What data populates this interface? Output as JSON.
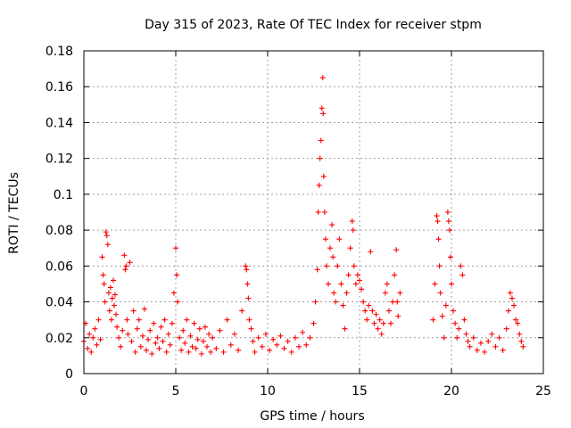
{
  "chart_data": {
    "type": "scatter",
    "title": "Day 315 of 2023, Rate Of TEC Index for receiver stpm",
    "xlabel": "GPS time / hours",
    "ylabel": "ROTI / TECUs",
    "xlim": [
      0,
      25
    ],
    "ylim": [
      0,
      0.18
    ],
    "xticks": [
      0,
      5,
      10,
      15,
      20,
      25
    ],
    "xtick_labels": [
      "0",
      "5",
      "10",
      "15",
      "20",
      "25"
    ],
    "yticks": [
      0,
      0.02,
      0.04,
      0.06,
      0.08,
      0.1,
      0.12,
      0.14,
      0.16,
      0.18
    ],
    "ytick_labels": [
      "0",
      "0.02",
      "0.04",
      "0.06",
      "0.08",
      "0.1",
      "0.12",
      "0.14",
      "0.16",
      "0.18"
    ],
    "grid": true,
    "marker": "plus",
    "color": "#ff0000",
    "series": [
      {
        "name": "ROTI",
        "points": [
          [
            0.0,
            0.018
          ],
          [
            0.1,
            0.028
          ],
          [
            0.2,
            0.014
          ],
          [
            0.3,
            0.022
          ],
          [
            0.4,
            0.012
          ],
          [
            0.5,
            0.02
          ],
          [
            0.6,
            0.025
          ],
          [
            0.7,
            0.016
          ],
          [
            0.8,
            0.03
          ],
          [
            0.9,
            0.019
          ],
          [
            1.0,
            0.065
          ],
          [
            1.05,
            0.055
          ],
          [
            1.1,
            0.05
          ],
          [
            1.15,
            0.04
          ],
          [
            1.2,
            0.079
          ],
          [
            1.25,
            0.077
          ],
          [
            1.3,
            0.072
          ],
          [
            1.35,
            0.045
          ],
          [
            1.4,
            0.035
          ],
          [
            1.45,
            0.048
          ],
          [
            1.5,
            0.03
          ],
          [
            1.55,
            0.042
          ],
          [
            1.6,
            0.052
          ],
          [
            1.65,
            0.038
          ],
          [
            1.7,
            0.044
          ],
          [
            1.75,
            0.033
          ],
          [
            1.8,
            0.026
          ],
          [
            1.9,
            0.02
          ],
          [
            2.0,
            0.015
          ],
          [
            2.1,
            0.024
          ],
          [
            2.2,
            0.066
          ],
          [
            2.25,
            0.058
          ],
          [
            2.3,
            0.06
          ],
          [
            2.35,
            0.03
          ],
          [
            2.4,
            0.022
          ],
          [
            2.5,
            0.062
          ],
          [
            2.6,
            0.018
          ],
          [
            2.7,
            0.035
          ],
          [
            2.8,
            0.012
          ],
          [
            2.9,
            0.025
          ],
          [
            3.0,
            0.03
          ],
          [
            3.1,
            0.015
          ],
          [
            3.2,
            0.021
          ],
          [
            3.3,
            0.036
          ],
          [
            3.4,
            0.013
          ],
          [
            3.5,
            0.019
          ],
          [
            3.6,
            0.024
          ],
          [
            3.7,
            0.011
          ],
          [
            3.8,
            0.028
          ],
          [
            3.9,
            0.017
          ],
          [
            4.0,
            0.02
          ],
          [
            4.1,
            0.014
          ],
          [
            4.2,
            0.026
          ],
          [
            4.3,
            0.018
          ],
          [
            4.4,
            0.03
          ],
          [
            4.5,
            0.012
          ],
          [
            4.6,
            0.022
          ],
          [
            4.7,
            0.016
          ],
          [
            4.8,
            0.028
          ],
          [
            4.9,
            0.045
          ],
          [
            5.0,
            0.07
          ],
          [
            5.05,
            0.055
          ],
          [
            5.1,
            0.04
          ],
          [
            5.2,
            0.02
          ],
          [
            5.3,
            0.013
          ],
          [
            5.4,
            0.024
          ],
          [
            5.5,
            0.017
          ],
          [
            5.6,
            0.03
          ],
          [
            5.7,
            0.012
          ],
          [
            5.8,
            0.021
          ],
          [
            5.9,
            0.015
          ],
          [
            6.0,
            0.028
          ],
          [
            6.1,
            0.014
          ],
          [
            6.2,
            0.019
          ],
          [
            6.3,
            0.025
          ],
          [
            6.4,
            0.011
          ],
          [
            6.5,
            0.018
          ],
          [
            6.6,
            0.026
          ],
          [
            6.7,
            0.015
          ],
          [
            6.8,
            0.022
          ],
          [
            6.9,
            0.012
          ],
          [
            7.0,
            0.02
          ],
          [
            7.2,
            0.014
          ],
          [
            7.4,
            0.024
          ],
          [
            7.6,
            0.012
          ],
          [
            7.8,
            0.03
          ],
          [
            8.0,
            0.016
          ],
          [
            8.2,
            0.022
          ],
          [
            8.4,
            0.013
          ],
          [
            8.6,
            0.035
          ],
          [
            8.8,
            0.06
          ],
          [
            8.85,
            0.058
          ],
          [
            8.9,
            0.05
          ],
          [
            8.95,
            0.042
          ],
          [
            9.0,
            0.03
          ],
          [
            9.1,
            0.025
          ],
          [
            9.2,
            0.018
          ],
          [
            9.3,
            0.012
          ],
          [
            9.5,
            0.02
          ],
          [
            9.7,
            0.015
          ],
          [
            9.9,
            0.022
          ],
          [
            10.1,
            0.013
          ],
          [
            10.3,
            0.019
          ],
          [
            10.5,
            0.016
          ],
          [
            10.7,
            0.021
          ],
          [
            10.9,
            0.014
          ],
          [
            11.1,
            0.018
          ],
          [
            11.3,
            0.012
          ],
          [
            11.5,
            0.02
          ],
          [
            11.7,
            0.015
          ],
          [
            11.9,
            0.023
          ],
          [
            12.1,
            0.016
          ],
          [
            12.3,
            0.02
          ],
          [
            12.5,
            0.028
          ],
          [
            12.6,
            0.04
          ],
          [
            12.7,
            0.058
          ],
          [
            12.75,
            0.09
          ],
          [
            12.8,
            0.105
          ],
          [
            12.85,
            0.12
          ],
          [
            12.9,
            0.13
          ],
          [
            12.95,
            0.148
          ],
          [
            13.0,
            0.165
          ],
          [
            13.02,
            0.145
          ],
          [
            13.05,
            0.11
          ],
          [
            13.1,
            0.09
          ],
          [
            13.15,
            0.075
          ],
          [
            13.2,
            0.06
          ],
          [
            13.3,
            0.05
          ],
          [
            13.4,
            0.07
          ],
          [
            13.5,
            0.083
          ],
          [
            13.55,
            0.065
          ],
          [
            13.6,
            0.045
          ],
          [
            13.7,
            0.04
          ],
          [
            13.8,
            0.06
          ],
          [
            13.9,
            0.075
          ],
          [
            14.0,
            0.05
          ],
          [
            14.1,
            0.038
          ],
          [
            14.2,
            0.025
          ],
          [
            14.3,
            0.045
          ],
          [
            14.4,
            0.055
          ],
          [
            14.5,
            0.07
          ],
          [
            14.6,
            0.085
          ],
          [
            14.65,
            0.08
          ],
          [
            14.7,
            0.06
          ],
          [
            14.8,
            0.05
          ],
          [
            14.9,
            0.055
          ],
          [
            15.0,
            0.052
          ],
          [
            15.1,
            0.047
          ],
          [
            15.2,
            0.04
          ],
          [
            15.3,
            0.035
          ],
          [
            15.4,
            0.03
          ],
          [
            15.5,
            0.038
          ],
          [
            15.6,
            0.068
          ],
          [
            15.7,
            0.035
          ],
          [
            15.8,
            0.028
          ],
          [
            15.9,
            0.033
          ],
          [
            16.0,
            0.025
          ],
          [
            16.1,
            0.03
          ],
          [
            16.2,
            0.022
          ],
          [
            16.3,
            0.028
          ],
          [
            16.4,
            0.045
          ],
          [
            16.5,
            0.05
          ],
          [
            16.6,
            0.035
          ],
          [
            16.7,
            0.028
          ],
          [
            16.8,
            0.04
          ],
          [
            16.9,
            0.055
          ],
          [
            17.0,
            0.069
          ],
          [
            17.05,
            0.04
          ],
          [
            17.1,
            0.032
          ],
          [
            17.2,
            0.045
          ],
          [
            19.0,
            0.03
          ],
          [
            19.1,
            0.05
          ],
          [
            19.2,
            0.088
          ],
          [
            19.25,
            0.085
          ],
          [
            19.3,
            0.075
          ],
          [
            19.35,
            0.06
          ],
          [
            19.4,
            0.045
          ],
          [
            19.5,
            0.032
          ],
          [
            19.6,
            0.02
          ],
          [
            19.7,
            0.038
          ],
          [
            19.8,
            0.09
          ],
          [
            19.85,
            0.085
          ],
          [
            19.9,
            0.08
          ],
          [
            19.95,
            0.065
          ],
          [
            20.0,
            0.05
          ],
          [
            20.1,
            0.035
          ],
          [
            20.2,
            0.028
          ],
          [
            20.3,
            0.02
          ],
          [
            20.4,
            0.025
          ],
          [
            20.5,
            0.06
          ],
          [
            20.6,
            0.055
          ],
          [
            20.7,
            0.03
          ],
          [
            20.8,
            0.022
          ],
          [
            20.9,
            0.018
          ],
          [
            21.0,
            0.015
          ],
          [
            21.2,
            0.02
          ],
          [
            21.4,
            0.013
          ],
          [
            21.6,
            0.017
          ],
          [
            21.8,
            0.012
          ],
          [
            22.0,
            0.018
          ],
          [
            22.2,
            0.022
          ],
          [
            22.4,
            0.015
          ],
          [
            22.6,
            0.02
          ],
          [
            22.8,
            0.013
          ],
          [
            23.0,
            0.025
          ],
          [
            23.1,
            0.035
          ],
          [
            23.2,
            0.045
          ],
          [
            23.3,
            0.042
          ],
          [
            23.4,
            0.038
          ],
          [
            23.5,
            0.03
          ],
          [
            23.6,
            0.028
          ],
          [
            23.7,
            0.022
          ],
          [
            23.8,
            0.018
          ],
          [
            23.9,
            0.015
          ]
        ]
      }
    ]
  }
}
